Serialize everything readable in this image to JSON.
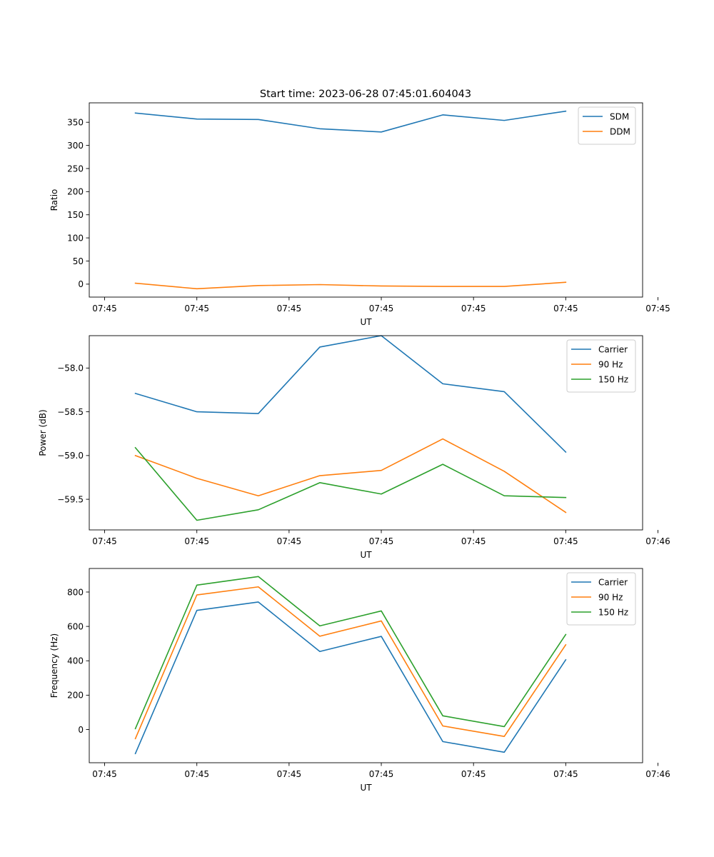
{
  "figure": {
    "title": "Start time: 2023-06-28 07:45:01.604043"
  },
  "chart_data": [
    {
      "type": "line",
      "xlabel": "UT",
      "ylabel": "Ratio",
      "x": [
        1,
        2,
        3,
        4,
        5,
        6,
        7,
        8
      ],
      "xlim": [
        0.25,
        9.25
      ],
      "x_ticks": [
        0.5,
        2,
        3.5,
        5,
        6.5,
        8,
        9.5
      ],
      "x_tick_labels": [
        "07:45",
        "07:45",
        "07:45",
        "07:45",
        "07:45",
        "07:45",
        "07:45"
      ],
      "ylim": [
        -28,
        392
      ],
      "y_ticks": [
        0,
        50,
        100,
        150,
        200,
        250,
        300,
        350
      ],
      "y_tick_labels": [
        "0",
        "50",
        "100",
        "150",
        "200",
        "250",
        "300",
        "350"
      ],
      "legend": "top-right",
      "grid": false,
      "series": [
        {
          "name": "SDM",
          "color": "#1f77b4",
          "values": [
            370,
            357,
            356,
            336,
            329,
            366,
            354,
            374
          ]
        },
        {
          "name": "DDM",
          "color": "#ff7f0e",
          "values": [
            2,
            -10,
            -3,
            -1,
            -4,
            -5,
            -5,
            4
          ]
        }
      ]
    },
    {
      "type": "line",
      "xlabel": "UT",
      "ylabel": "Power (dB)",
      "x": [
        1,
        2,
        3,
        4,
        5,
        6,
        7,
        8
      ],
      "xlim": [
        0.25,
        9.25
      ],
      "x_ticks": [
        0.5,
        2,
        3.5,
        5,
        6.5,
        8,
        9.5
      ],
      "x_tick_labels": [
        "07:45",
        "07:45",
        "07:45",
        "07:45",
        "07:45",
        "07:45",
        "07:46"
      ],
      "ylim": [
        -59.85,
        -57.63
      ],
      "y_ticks": [
        -58.0,
        -58.5,
        -59.0,
        -59.5
      ],
      "y_tick_labels": [
        "−58.0",
        "−58.5",
        "−59.0",
        "−59.5"
      ],
      "legend": "top-right",
      "grid": false,
      "series": [
        {
          "name": "Carrier",
          "color": "#1f77b4",
          "values": [
            -58.29,
            -58.5,
            -58.52,
            -57.76,
            -57.63,
            -58.18,
            -58.27,
            -58.96
          ]
        },
        {
          "name": "90 Hz",
          "color": "#ff7f0e",
          "values": [
            -59.0,
            -59.26,
            -59.46,
            -59.23,
            -59.17,
            -58.81,
            -59.18,
            -59.65
          ]
        },
        {
          "name": "150 Hz",
          "color": "#2ca02c",
          "values": [
            -58.91,
            -59.74,
            -59.62,
            -59.31,
            -59.44,
            -59.1,
            -59.46,
            -59.48
          ]
        }
      ]
    },
    {
      "type": "line",
      "xlabel": "UT",
      "ylabel": "Frequency (Hz)",
      "x": [
        1,
        2,
        3,
        4,
        5,
        6,
        7,
        8
      ],
      "xlim": [
        0.25,
        9.25
      ],
      "x_ticks": [
        0.5,
        2,
        3.5,
        5,
        6.5,
        8,
        9.5
      ],
      "x_tick_labels": [
        "07:45",
        "07:45",
        "07:45",
        "07:45",
        "07:45",
        "07:45",
        "07:46"
      ],
      "ylim": [
        -193,
        937
      ],
      "y_ticks": [
        0,
        200,
        400,
        600,
        800
      ],
      "y_tick_labels": [
        "0",
        "200",
        "400",
        "600",
        "800"
      ],
      "legend": "top-right",
      "grid": false,
      "series": [
        {
          "name": "Carrier",
          "color": "#1f77b4",
          "values": [
            -140,
            693,
            742,
            454,
            542,
            -70,
            -132,
            406
          ]
        },
        {
          "name": "90 Hz",
          "color": "#ff7f0e",
          "values": [
            -53,
            783,
            830,
            543,
            632,
            21,
            -40,
            493
          ]
        },
        {
          "name": "150 Hz",
          "color": "#2ca02c",
          "values": [
            5,
            840,
            890,
            603,
            690,
            80,
            17,
            553
          ]
        }
      ]
    }
  ]
}
